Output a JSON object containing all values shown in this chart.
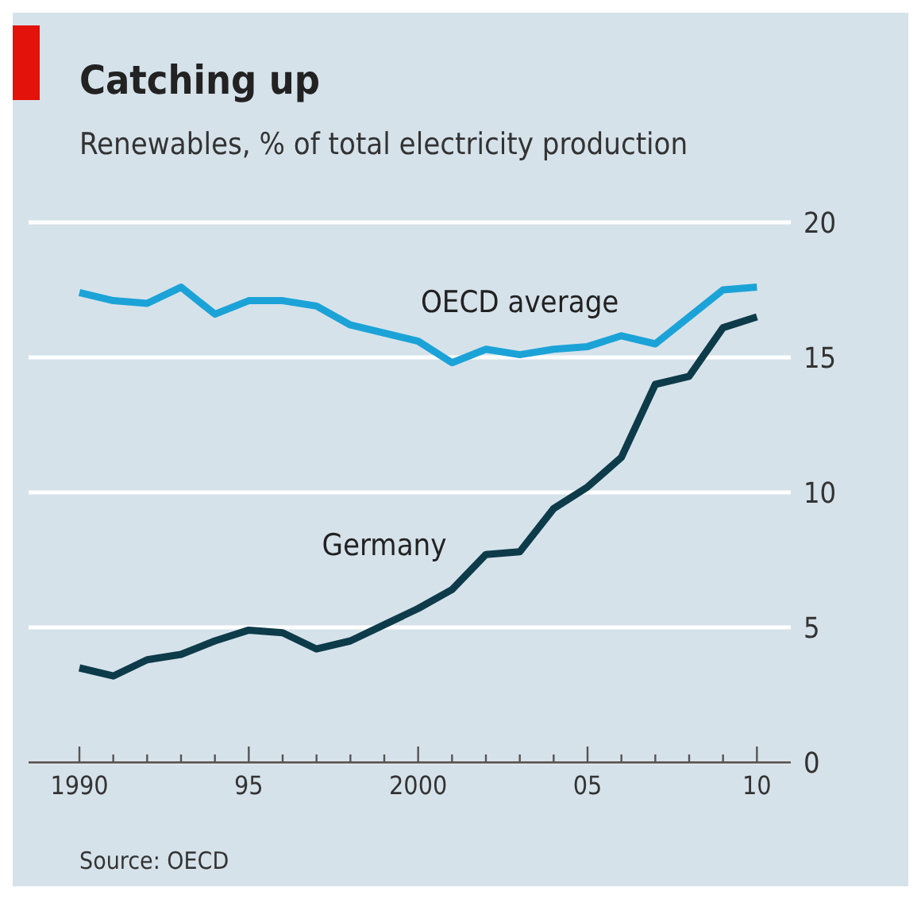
{
  "chart_data": {
    "type": "line",
    "title": "Catching up",
    "subtitle": "Renewables, % of total electricity production",
    "annotations": [
      "Source: OECD"
    ],
    "x": [
      1990,
      1991,
      1992,
      1993,
      1994,
      1995,
      1996,
      1997,
      1998,
      1999,
      2000,
      2001,
      2002,
      2003,
      2004,
      2005,
      2006,
      2007,
      2008,
      2009,
      2010
    ],
    "series": [
      {
        "name": "OECD average",
        "color": "#1ba3d8",
        "values": [
          17.4,
          17.1,
          17.0,
          17.6,
          16.6,
          17.1,
          17.1,
          16.9,
          16.2,
          15.9,
          15.6,
          14.8,
          15.3,
          15.1,
          15.3,
          15.4,
          15.8,
          15.5,
          16.5,
          17.5,
          17.6
        ]
      },
      {
        "name": "Germany",
        "color": "#0d3b4a",
        "values": [
          3.5,
          3.2,
          3.8,
          4.0,
          4.5,
          4.9,
          4.8,
          4.2,
          4.5,
          5.1,
          5.7,
          6.4,
          7.7,
          7.8,
          9.4,
          10.2,
          11.3,
          14.0,
          14.3,
          16.1,
          16.5
        ]
      }
    ],
    "xlim": [
      1988.5,
      2011
    ],
    "xticks": [
      {
        "value": 1990,
        "label": "1990"
      },
      {
        "value": 1991,
        "label": null
      },
      {
        "value": 1992,
        "label": null
      },
      {
        "value": 1993,
        "label": null
      },
      {
        "value": 1994,
        "label": null
      },
      {
        "value": 1995,
        "label": "95"
      },
      {
        "value": 1996,
        "label": null
      },
      {
        "value": 1997,
        "label": null
      },
      {
        "value": 1998,
        "label": null
      },
      {
        "value": 1999,
        "label": null
      },
      {
        "value": 2000,
        "label": "2000"
      },
      {
        "value": 2001,
        "label": null
      },
      {
        "value": 2002,
        "label": null
      },
      {
        "value": 2003,
        "label": null
      },
      {
        "value": 2004,
        "label": null
      },
      {
        "value": 2005,
        "label": "05"
      },
      {
        "value": 2006,
        "label": null
      },
      {
        "value": 2007,
        "label": null
      },
      {
        "value": 2008,
        "label": null
      },
      {
        "value": 2009,
        "label": null
      },
      {
        "value": 2010,
        "label": "10"
      }
    ],
    "ylim": [
      0,
      20
    ],
    "yticks": [
      0,
      5,
      10,
      15,
      20
    ],
    "grid": "y",
    "legend": false,
    "marker": "none",
    "line_style": "solid"
  }
}
